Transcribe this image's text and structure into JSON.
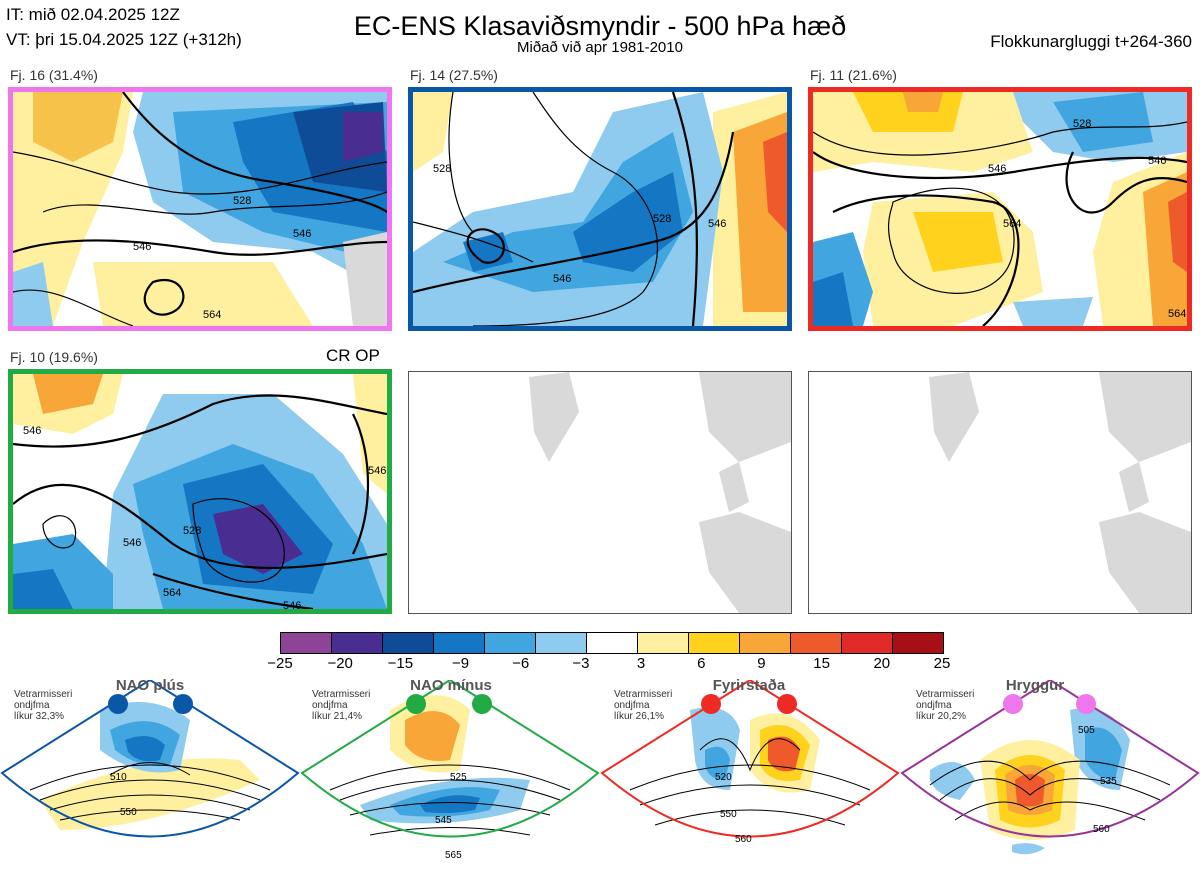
{
  "header": {
    "it_line": "IT: mið 02.04.2025 12Z",
    "vt_line": "VT: þri 15.04.2025 12Z  (+312h)",
    "title": "EC-ENS Klasaviðsmyndir - 500 hPa hæð",
    "subtitle": "Miðað við apr 1981-2010",
    "window": "Flokkunargluggi t+264-360"
  },
  "panels": [
    {
      "label": "Fj. 16 (31.4%)",
      "border": "#ee77ee",
      "contours": [
        "528",
        "546",
        "546",
        "564"
      ]
    },
    {
      "label": "Fj. 14 (27.5%)",
      "border": "#0a57a8",
      "contours": [
        "528",
        "528",
        "546",
        "546"
      ]
    },
    {
      "label": "Fj. 11 (21.6%)",
      "border": "#ee2a24",
      "contours": [
        "528",
        "546",
        "546",
        "564",
        "564"
      ]
    },
    {
      "label": "Fj. 10 (19.6%)",
      "border": "#22aa44",
      "contours": [
        "528",
        "546",
        "546",
        "546",
        "564",
        "546"
      ],
      "tag": "CR OP"
    }
  ],
  "colorbar": {
    "colors": [
      "#8e4496",
      "#4a2d91",
      "#0e4c98",
      "#1577c3",
      "#41a6e0",
      "#8ecbee",
      "#ffffff",
      "#fff0a0",
      "#ffd21e",
      "#f7a637",
      "#ee5a2c",
      "#e02a28",
      "#a50f15"
    ],
    "ticks": [
      "−25",
      "−20",
      "−15",
      "−9",
      "−6",
      "−3",
      "3",
      "6",
      "9",
      "15",
      "20",
      "25"
    ]
  },
  "regimes": [
    {
      "name": "NAO plús",
      "color": "#0a57a8",
      "line1": "Vetrarmisseri",
      "line2": "ondjfma",
      "line3": "líkur 32,3%",
      "contours": [
        "510",
        "550"
      ]
    },
    {
      "name": "NAO mínus",
      "color": "#22aa44",
      "line1": "Vetrarmisseri",
      "line2": "ondjfma",
      "line3": "líkur 21,4%",
      "contours": [
        "525",
        "545",
        "565"
      ]
    },
    {
      "name": "Fyrirstaða",
      "color": "#ee2a24",
      "line1": "Vetrarmisseri",
      "line2": "ondjfma",
      "line3": "líkur 26,1%",
      "contours": [
        "520",
        "550",
        "560"
      ]
    },
    {
      "name": "Hryggur",
      "color": "#993399",
      "line1": "Vetrarmisseri",
      "line2": "ondjfma",
      "line3": "líkur 20,2%",
      "contours": [
        "505",
        "535",
        "560"
      ]
    }
  ]
}
